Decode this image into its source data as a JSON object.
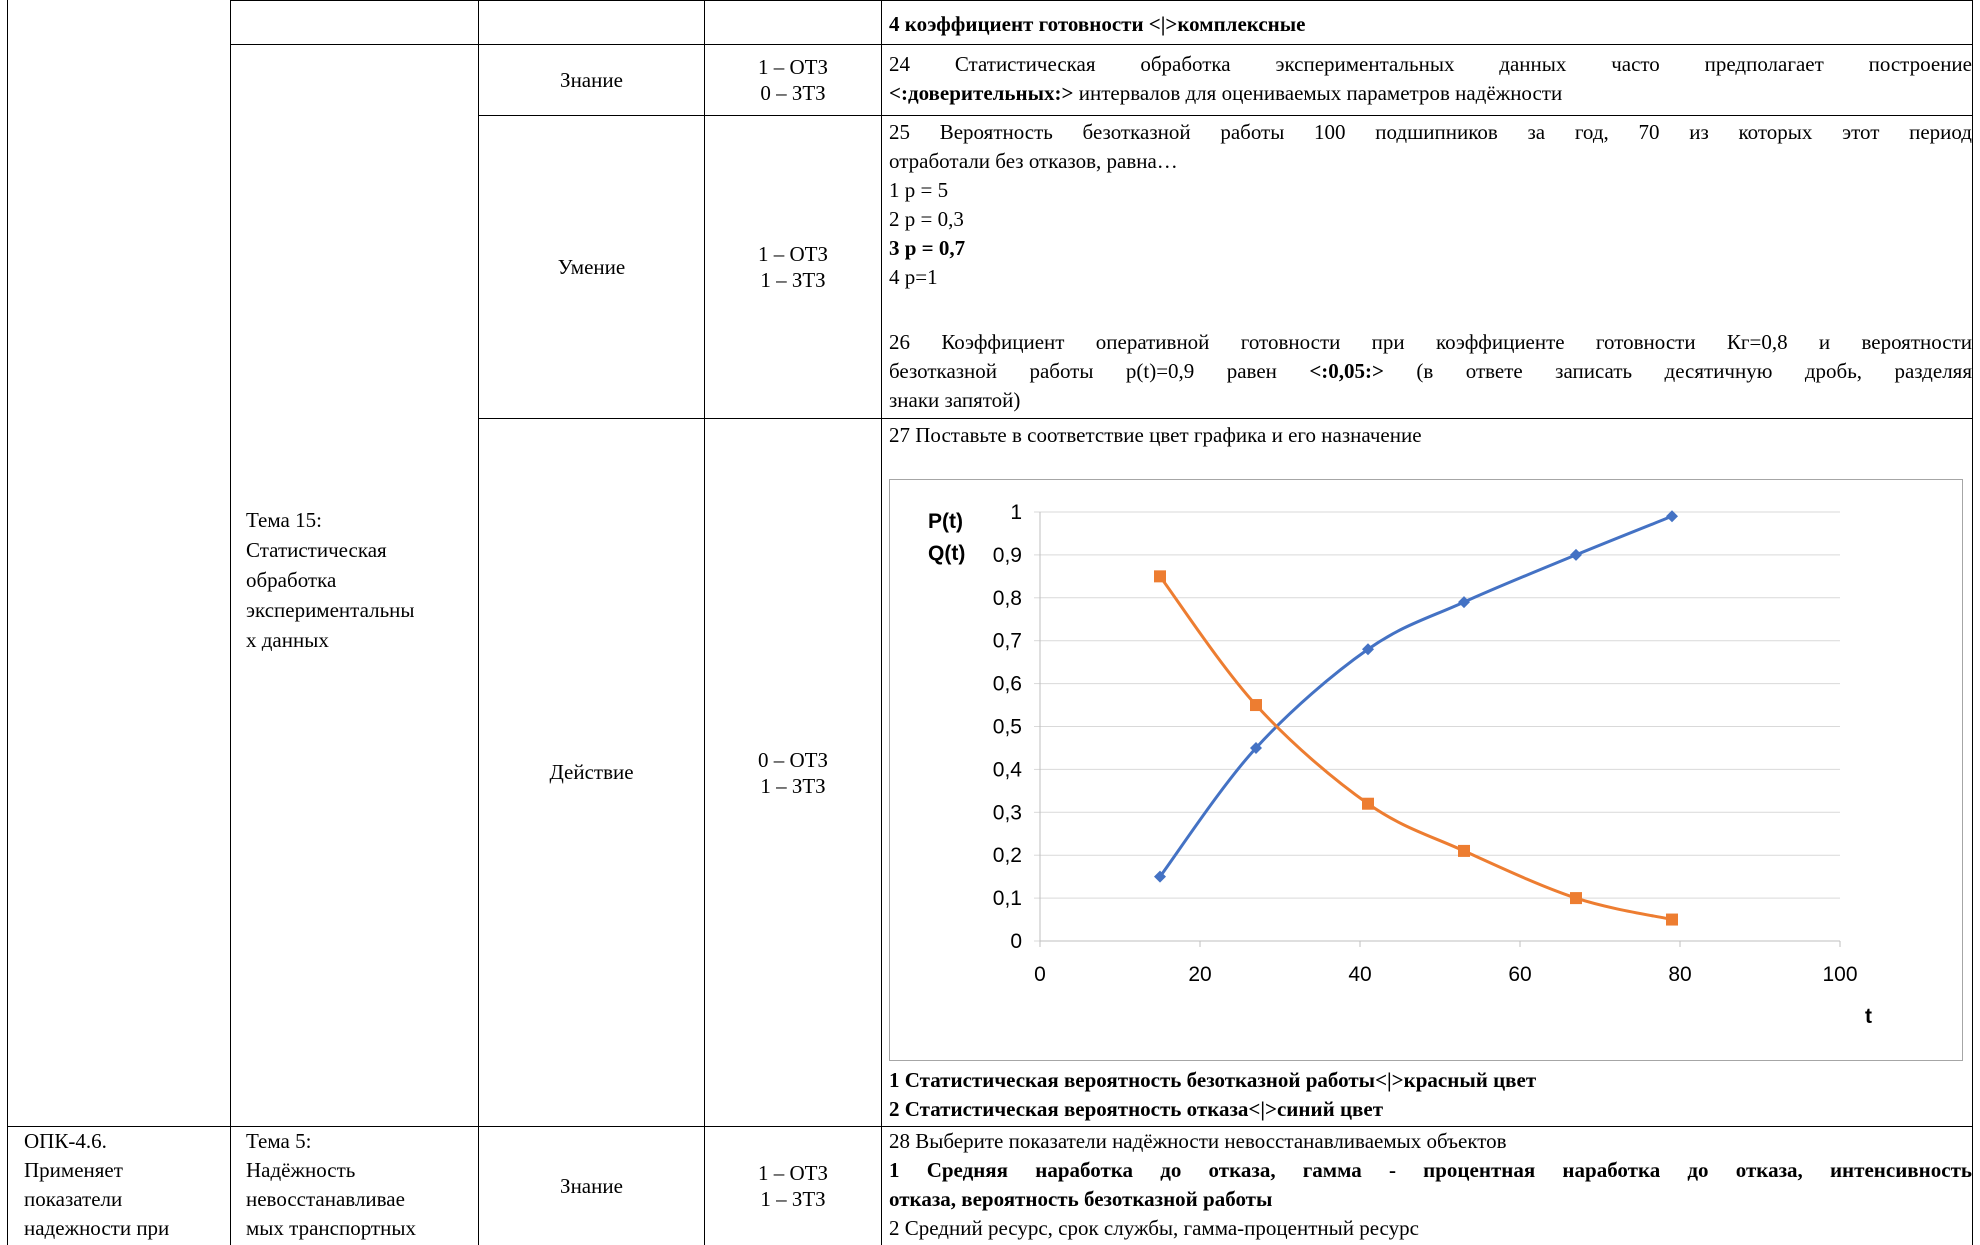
{
  "rows": {
    "r0": {
      "answer": "4 коэффициент готовности <|>комплексные"
    },
    "r1": {
      "type": "Знание",
      "count_l1": "1 – ОТЗ",
      "count_l2": "0 – ЗТЗ",
      "q_line1": "24 Статистическая обработка экспериментальных данных часто предполагает построение",
      "q_line2_bold": "<:доверительных:>",
      "q_line2_rest": " интервалов для оцениваемых параметров надёжности"
    },
    "r2": {
      "type": "Умение",
      "count_l1": "1 – ОТЗ",
      "count_l2": "1 – ЗТЗ",
      "q25_line1": "25 Вероятность безотказной работы 100 подшипников за год, 70 из которых этот период",
      "q25_line2": "отработали без отказов, равна…",
      "opt1": "1 p = 5",
      "opt2": "2 p = 0,3",
      "opt3": "3 p = 0,7",
      "opt4": "4  p=1",
      "q26_line1": "26 Коэффициент оперативной готовности при коэффициенте готовности Кг=0,8 и вероятности",
      "q26_line2a": "безотказной работы p(t)=0,9 равен ",
      "q26_line2b": "<:0,05:>",
      "q26_line2c": " (в ответе записать десятичную дробь, разделяя",
      "q26_line3": "знаки запятой)"
    },
    "r3": {
      "topic": "Тема 15: Статистическая обработка экспериментальны х данных",
      "topic_l1": "Тема 15:",
      "topic_l2": "Статистическая",
      "topic_l3": "обработка",
      "topic_l4": "экспериментальны",
      "topic_l5": "х данных",
      "type": "Действие",
      "count_l1": "0 – ОТЗ",
      "count_l2": "1 – ЗТЗ",
      "q27": "27 Поставьте в соответствие цвет графика и его назначение",
      "ans1": "1 Статистическая вероятность безотказной работы<|>красный цвет",
      "ans2": "2 Статистическая вероятность отказа<|>синий цвет"
    },
    "r4": {
      "comp_l1": "ОПК-4.6.",
      "comp_l2": "Применяет",
      "comp_l3": "показатели",
      "comp_l4": "надежности при",
      "topic_l1": "Тема 5:",
      "topic_l2": "Надёжность",
      "topic_l3": "невосстанавливае",
      "topic_l4": "мых транспортных",
      "type": "Знание",
      "count_l1": "1 – ОТЗ",
      "count_l2": "1 – ЗТЗ",
      "q28": "28 Выберите показатели надёжности невосстанавливаемых объектов",
      "ans1_l1": "1 Средняя наработка до отказа, гамма - процентная  наработка до отказа, интенсивность",
      "ans1_l2": "отказа, вероятность безотказной работы",
      "ans2": "2 Средний ресурс, срок службы, гамма-процентный ресурс"
    }
  },
  "chart_data": {
    "type": "line",
    "title": "",
    "ylabel_l1": "P(t)",
    "ylabel_l2": "Q(t)",
    "xlabel": "t",
    "xlim": [
      0,
      100
    ],
    "ylim": [
      0,
      1
    ],
    "x_ticks": [
      "0",
      "20",
      "40",
      "60",
      "80",
      "100"
    ],
    "y_ticks": [
      "0",
      "0,1",
      "0,2",
      "0,3",
      "0,4",
      "0,5",
      "0,6",
      "0,7",
      "0,8",
      "0,9",
      "1"
    ],
    "grid": true,
    "legend": "none",
    "series": [
      {
        "color": "#4472C4",
        "marker": "diamond",
        "x": [
          15,
          27,
          41,
          53,
          67,
          79
        ],
        "y": [
          0.15,
          0.45,
          0.68,
          0.79,
          0.9,
          0.99
        ]
      },
      {
        "color": "#ED7D31",
        "marker": "square",
        "x": [
          15,
          27,
          41,
          53,
          67,
          79
        ],
        "y": [
          0.85,
          0.55,
          0.32,
          0.21,
          0.1,
          0.05
        ]
      }
    ]
  }
}
